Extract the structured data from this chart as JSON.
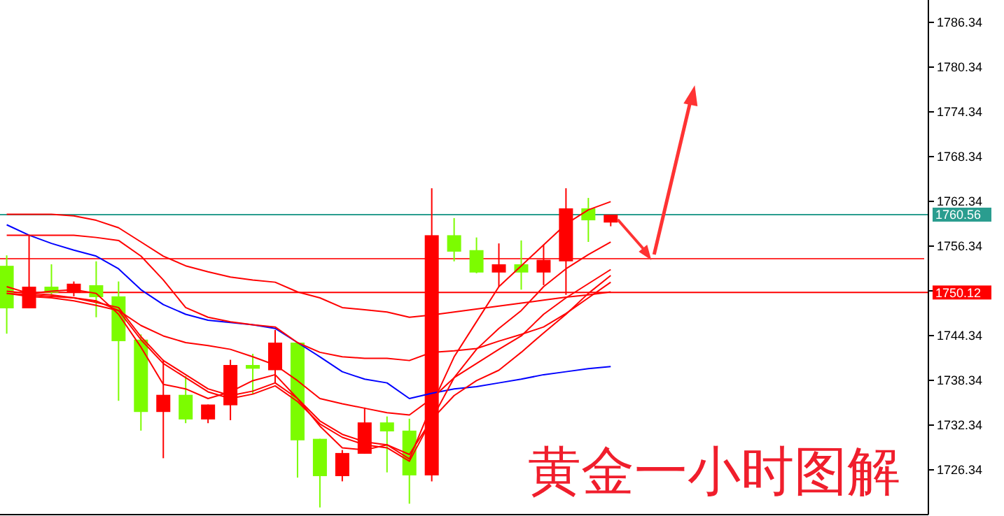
{
  "chart_data": {
    "type": "candlestick",
    "annotations": [
      "黄金一小时图解"
    ],
    "categories": [
      null,
      null,
      null,
      null,
      null,
      null,
      null,
      null,
      null,
      null,
      null,
      null,
      null,
      null,
      null,
      null,
      null,
      null,
      null,
      null,
      null,
      null,
      null,
      null,
      null,
      null,
      null,
      null
    ],
    "ohlc": [
      [
        1753.7,
        1755.1,
        1744.6,
        1748.0
      ],
      [
        1748.0,
        1757.8,
        1748.0,
        1750.9
      ],
      [
        1750.9,
        1753.9,
        1749.6,
        1750.1
      ],
      [
        1750.1,
        1751.6,
        1749.6,
        1751.3
      ],
      [
        1751.1,
        1754.3,
        1746.8,
        1749.5
      ],
      [
        1749.6,
        1751.6,
        1735.6,
        1743.6
      ],
      [
        1743.8,
        1744.5,
        1731.6,
        1734.1
      ],
      [
        1734.1,
        1741.1,
        1727.9,
        1736.4
      ],
      [
        1736.4,
        1738.9,
        1732.6,
        1733.1
      ],
      [
        1733.1,
        1735.1,
        1732.6,
        1735.1
      ],
      [
        1735.0,
        1741.1,
        1733.0,
        1740.4
      ],
      [
        1740.4,
        1741.9,
        1736.5,
        1739.9
      ],
      [
        1739.7,
        1745.1,
        1738.0,
        1743.4
      ],
      [
        1743.4,
        1743.4,
        1725.3,
        1730.3
      ],
      [
        1730.5,
        1730.5,
        1721.3,
        1725.5
      ],
      [
        1725.5,
        1729.0,
        1724.8,
        1728.6
      ],
      [
        1728.5,
        1734.7,
        1728.5,
        1732.7
      ],
      [
        1732.7,
        1733.5,
        1726.0,
        1731.5
      ],
      [
        1731.6,
        1733.2,
        1721.8,
        1725.6
      ],
      [
        1725.6,
        1764.1,
        1724.8,
        1757.8
      ],
      [
        1757.8,
        1760.1,
        1754.3,
        1755.6
      ],
      [
        1755.8,
        1757.5,
        1752.7,
        1752.8
      ],
      [
        1752.8,
        1756.7,
        1750.9,
        1753.9
      ],
      [
        1753.9,
        1757.1,
        1750.5,
        1752.8
      ],
      [
        1752.8,
        1756.5,
        1751.1,
        1754.5
      ],
      [
        1754.3,
        1764.1,
        1749.8,
        1761.4
      ],
      [
        1761.4,
        1762.8,
        1756.9,
        1759.8
      ],
      [
        1759.5,
        1760.56,
        1759.0,
        1760.56
      ]
    ],
    "colors": [
      "#7cfc00",
      "#ff0000",
      "#7cfc00",
      "#ff0000",
      "#7cfc00",
      "#7cfc00",
      "#7cfc00",
      "#ff0000",
      "#7cfc00",
      "#ff0000",
      "#ff0000",
      "#7cfc00",
      "#ff0000",
      "#7cfc00",
      "#7cfc00",
      "#ff0000",
      "#ff0000",
      "#7cfc00",
      "#7cfc00",
      "#ff0000",
      "#7cfc00",
      "#7cfc00",
      "#ff0000",
      "#7cfc00",
      "#ff0000",
      "#ff0000",
      "#7cfc00",
      "#ff0000"
    ],
    "series": [
      {
        "type": "line",
        "color": "#0000ff",
        "values": [
          1759.2,
          1757.8,
          1756.7,
          1755.8,
          1755.0,
          1753.3,
          1750.5,
          1748.5,
          1747.2,
          1746.4,
          1746.1,
          1745.8,
          1745.3,
          1743.4,
          1741.5,
          1739.5,
          1738.5,
          1738.0,
          1735.9,
          1736.6,
          1737.2,
          1737.5,
          1738.0,
          1738.5,
          1739.1,
          1739.5,
          1739.9,
          1740.2
        ]
      },
      {
        "type": "line",
        "color": "#ff0000",
        "values": [
          1760.6,
          1760.6,
          1760.6,
          1760.4,
          1759.8,
          1758.8,
          1756.9,
          1755.0,
          1753.7,
          1752.9,
          1752.2,
          1751.8,
          1751.5,
          1750.2,
          1749.4,
          1748.1,
          1747.8,
          1747.5,
          1746.8,
          1747.1,
          1747.5,
          1747.9,
          1748.3,
          1748.7,
          1749.1,
          1749.5,
          1749.8,
          1750.2
        ]
      },
      {
        "type": "line",
        "color": "#ff0000",
        "values": [
          1757.8,
          1757.8,
          1757.8,
          1757.8,
          1757.5,
          1757.1,
          1755.0,
          1751.8,
          1748.1,
          1746.8,
          1746.2,
          1745.8,
          1745.5,
          1743.4,
          1742.1,
          1741.5,
          1741.3,
          1741.3,
          1741.0,
          1742.1,
          1742.3,
          1742.6,
          1743.6,
          1744.5,
          1745.5,
          1747.3,
          1749.4,
          1751.5
        ]
      },
      {
        "type": "line",
        "color": "#ff0000",
        "values": [
          1750.0,
          1749.8,
          1749.6,
          1749.4,
          1749.0,
          1747.7,
          1745.7,
          1744.3,
          1743.4,
          1743.0,
          1742.5,
          1741.5,
          1740.4,
          1738.3,
          1735.9,
          1735.2,
          1734.6,
          1734.0,
          1733.7,
          1735.9,
          1738.7,
          1740.6,
          1742.5,
          1744.3,
          1747.2,
          1749.4,
          1751.3,
          1753.2
        ]
      },
      {
        "type": "line",
        "color": "#ff0000",
        "values": [
          1750.0,
          1749.6,
          1749.4,
          1749.0,
          1748.4,
          1747.7,
          1743.8,
          1740.6,
          1738.7,
          1736.8,
          1735.9,
          1736.5,
          1737.6,
          1735.5,
          1732.5,
          1730.7,
          1729.7,
          1729.3,
          1727.5,
          1733.1,
          1736.3,
          1738.3,
          1739.7,
          1742.1,
          1744.7,
          1747.2,
          1750.0,
          1752.4
        ]
      },
      {
        "type": "line",
        "color": "#ff0000",
        "values": [
          1750.3,
          1750.0,
          1749.8,
          1749.4,
          1748.8,
          1748.1,
          1744.2,
          1741.0,
          1739.1,
          1737.2,
          1736.3,
          1736.9,
          1738.0,
          1735.9,
          1732.9,
          1731.1,
          1730.1,
          1729.7,
          1728.4,
          1733.1,
          1738.7,
          1742.5,
          1745.3,
          1747.7,
          1750.9,
          1753.3,
          1755.2,
          1756.9
        ]
      },
      {
        "type": "line",
        "color": "#ff0000",
        "values": [
          1750.9,
          1750.0,
          1750.3,
          1750.5,
          1750.0,
          1747.2,
          1742.8,
          1737.8,
          1737.2,
          1735.9,
          1736.8,
          1738.3,
          1739.1,
          1735.9,
          1732.2,
          1729.3,
          1729.0,
          1729.7,
          1727.8,
          1735.0,
          1741.5,
          1746.2,
          1750.9,
          1753.7,
          1756.5,
          1759.3,
          1761.2,
          1762.3
        ]
      }
    ],
    "ylim": [
      1720.34,
      1789.34
    ],
    "yticks": [
      1726.34,
      1732.34,
      1738.34,
      1744.34,
      {
        "value": 1750.34,
        "label": null
      },
      1756.34,
      1762.34,
      1768.34,
      1774.34,
      1780.34,
      1786.34
    ],
    "tick_labels": "y",
    "grid": false,
    "ref_lines": [
      {
        "axis": "y",
        "value": 1760.56,
        "label": "1760.56",
        "color": "#2a9d8f"
      },
      {
        "axis": "y",
        "value": 1750.12,
        "label": "1750.12",
        "color": "#ff0000"
      },
      {
        "axis": "y",
        "value": 1754.65,
        "label": null,
        "color": "#ff3333"
      }
    ]
  }
}
